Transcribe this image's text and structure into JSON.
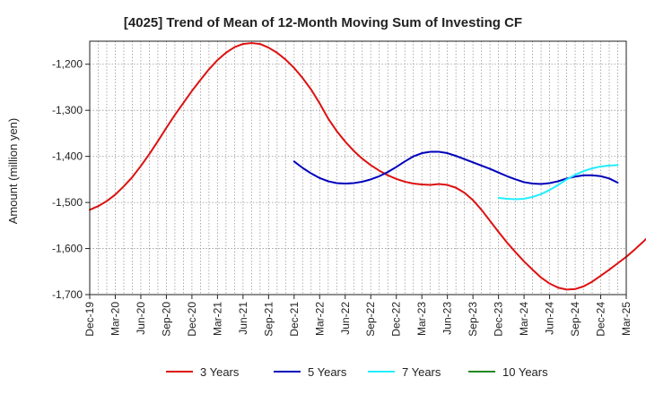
{
  "chart_data": {
    "type": "line",
    "title": "[4025]  Trend of Mean of 12-Month Moving Sum of Investing CF",
    "xlabel": "",
    "ylabel": "Amount (million yen)",
    "ylim": [
      -1700,
      -1150
    ],
    "yticks": [
      -1200,
      -1300,
      -1400,
      -1500,
      -1600,
      -1700
    ],
    "ytick_labels": [
      "-1,200",
      "-1,300",
      "-1,400",
      "-1,500",
      "-1,600",
      "-1,700"
    ],
    "xticks": [
      "Dec-19",
      "Mar-20",
      "Jun-20",
      "Sep-20",
      "Dec-20",
      "Mar-21",
      "Jun-21",
      "Sep-21",
      "Dec-21",
      "Mar-22",
      "Jun-22",
      "Sep-22",
      "Dec-22",
      "Mar-23",
      "Jun-23",
      "Sep-23",
      "Dec-23",
      "Mar-24",
      "Jun-24",
      "Sep-24",
      "Dec-24",
      "Mar-25"
    ],
    "grid": true,
    "legend_position": "bottom",
    "series": [
      {
        "name": "3 Years",
        "color": "#dd1111",
        "start_index": 0,
        "values": [
          -1516,
          -1508,
          -1497,
          -1483,
          -1465,
          -1445,
          -1421,
          -1395,
          -1367,
          -1338,
          -1310,
          -1284,
          -1258,
          -1234,
          -1211,
          -1191,
          -1175,
          -1163,
          -1156,
          -1154,
          -1156,
          -1164,
          -1175,
          -1190,
          -1208,
          -1230,
          -1255,
          -1285,
          -1318,
          -1345,
          -1368,
          -1388,
          -1405,
          -1419,
          -1431,
          -1441,
          -1449,
          -1455,
          -1459,
          -1461,
          -1462,
          -1460,
          -1462,
          -1468,
          -1479,
          -1495,
          -1516,
          -1540,
          -1564,
          -1587,
          -1608,
          -1628,
          -1646,
          -1663,
          -1676,
          -1685,
          -1689,
          -1688,
          -1682,
          -1672,
          -1659,
          -1646,
          -1632,
          -1618,
          -1602,
          -1585,
          -1567
        ]
      },
      {
        "name": "5 Years",
        "color": "#0000bb",
        "start_index": 24,
        "values": [
          -1411,
          -1425,
          -1437,
          -1447,
          -1454,
          -1458,
          -1459,
          -1458,
          -1455,
          -1450,
          -1443,
          -1434,
          -1423,
          -1411,
          -1400,
          -1393,
          -1390,
          -1390,
          -1393,
          -1399,
          -1406,
          -1413,
          -1420,
          -1427,
          -1435,
          -1443,
          -1450,
          -1456,
          -1459,
          -1460,
          -1458,
          -1454,
          -1448,
          -1444,
          -1441,
          -1441,
          -1443,
          -1448,
          -1457
        ]
      },
      {
        "name": "7 Years",
        "color": "#22eeff",
        "start_index": 48,
        "values": [
          -1490,
          -1492,
          -1493,
          -1492,
          -1488,
          -1482,
          -1473,
          -1462,
          -1450,
          -1440,
          -1432,
          -1426,
          -1422,
          -1420,
          -1419
        ]
      },
      {
        "name": "10 Years",
        "color": "#228822",
        "start_index": 0,
        "values": []
      }
    ]
  }
}
